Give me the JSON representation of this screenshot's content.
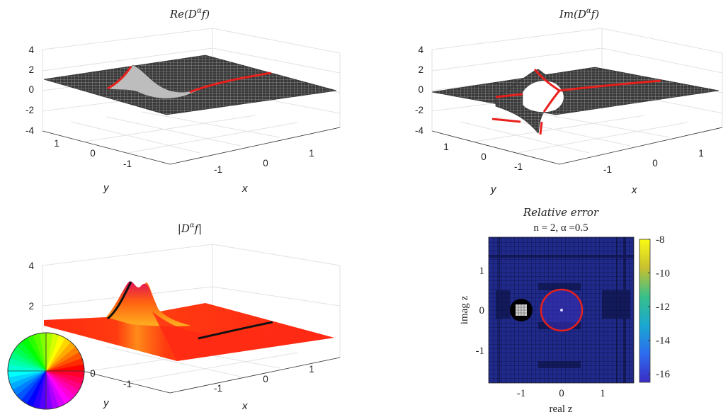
{
  "chart_data": [
    {
      "type": "surface",
      "title": "Re(D^α f)",
      "title_parts": {
        "pre": "Re(D",
        "sup": "α",
        "post": "f)"
      },
      "xlabel": "x",
      "ylabel": "y",
      "zticks": [
        "4",
        "2",
        "0",
        "-2",
        "-4"
      ],
      "xticks": [
        "-1",
        "0",
        "1"
      ],
      "yticks": [
        "1",
        "0",
        "-1"
      ],
      "zlim": [
        -4,
        4
      ],
      "surface_color": "#000000",
      "highlight_color": "#e8201c"
    },
    {
      "type": "surface",
      "title": "Im(D^α f)",
      "title_parts": {
        "pre": "Im(D",
        "sup": "α",
        "post": "f)"
      },
      "xlabel": "x",
      "ylabel": "y",
      "zticks": [
        "4",
        "2",
        "0",
        "-2",
        "-4"
      ],
      "xticks": [
        "-1",
        "0",
        "1"
      ],
      "yticks": [
        "1",
        "0",
        "-1"
      ],
      "zlim": [
        -4,
        4
      ],
      "surface_color": "#000000",
      "highlight_color": "#e8201c"
    },
    {
      "type": "surface",
      "title": "|D^α f|",
      "title_parts": {
        "pre": "|D",
        "sup": "α",
        "post": "f|"
      },
      "xlabel": "x",
      "ylabel": "y",
      "zticks": [
        "4",
        "2"
      ],
      "xticks": [
        "-1",
        "0",
        "1"
      ],
      "yticks": [
        "0",
        "-1"
      ],
      "surface_color": "#ff2a10",
      "highlight_color": "#111111",
      "colorwheel": true
    },
    {
      "type": "heatmap",
      "title": "Relative error",
      "subtitle": "n = 2, α =0.5",
      "xlabel": "real z",
      "ylabel": "imag z",
      "xticks": [
        "-1",
        "0",
        "1"
      ],
      "yticks": [
        "1",
        "0",
        "-1"
      ],
      "colorbar_ticks": [
        "-8",
        "-10",
        "-12",
        "-14",
        "-16"
      ],
      "colorbar_range": [
        -16.5,
        -8
      ],
      "background_value": -16,
      "circle": {
        "center": [
          0,
          0
        ],
        "radius": 0.5,
        "color": "#e8201c"
      },
      "singularity": {
        "center": [
          -1,
          0
        ]
      }
    }
  ]
}
